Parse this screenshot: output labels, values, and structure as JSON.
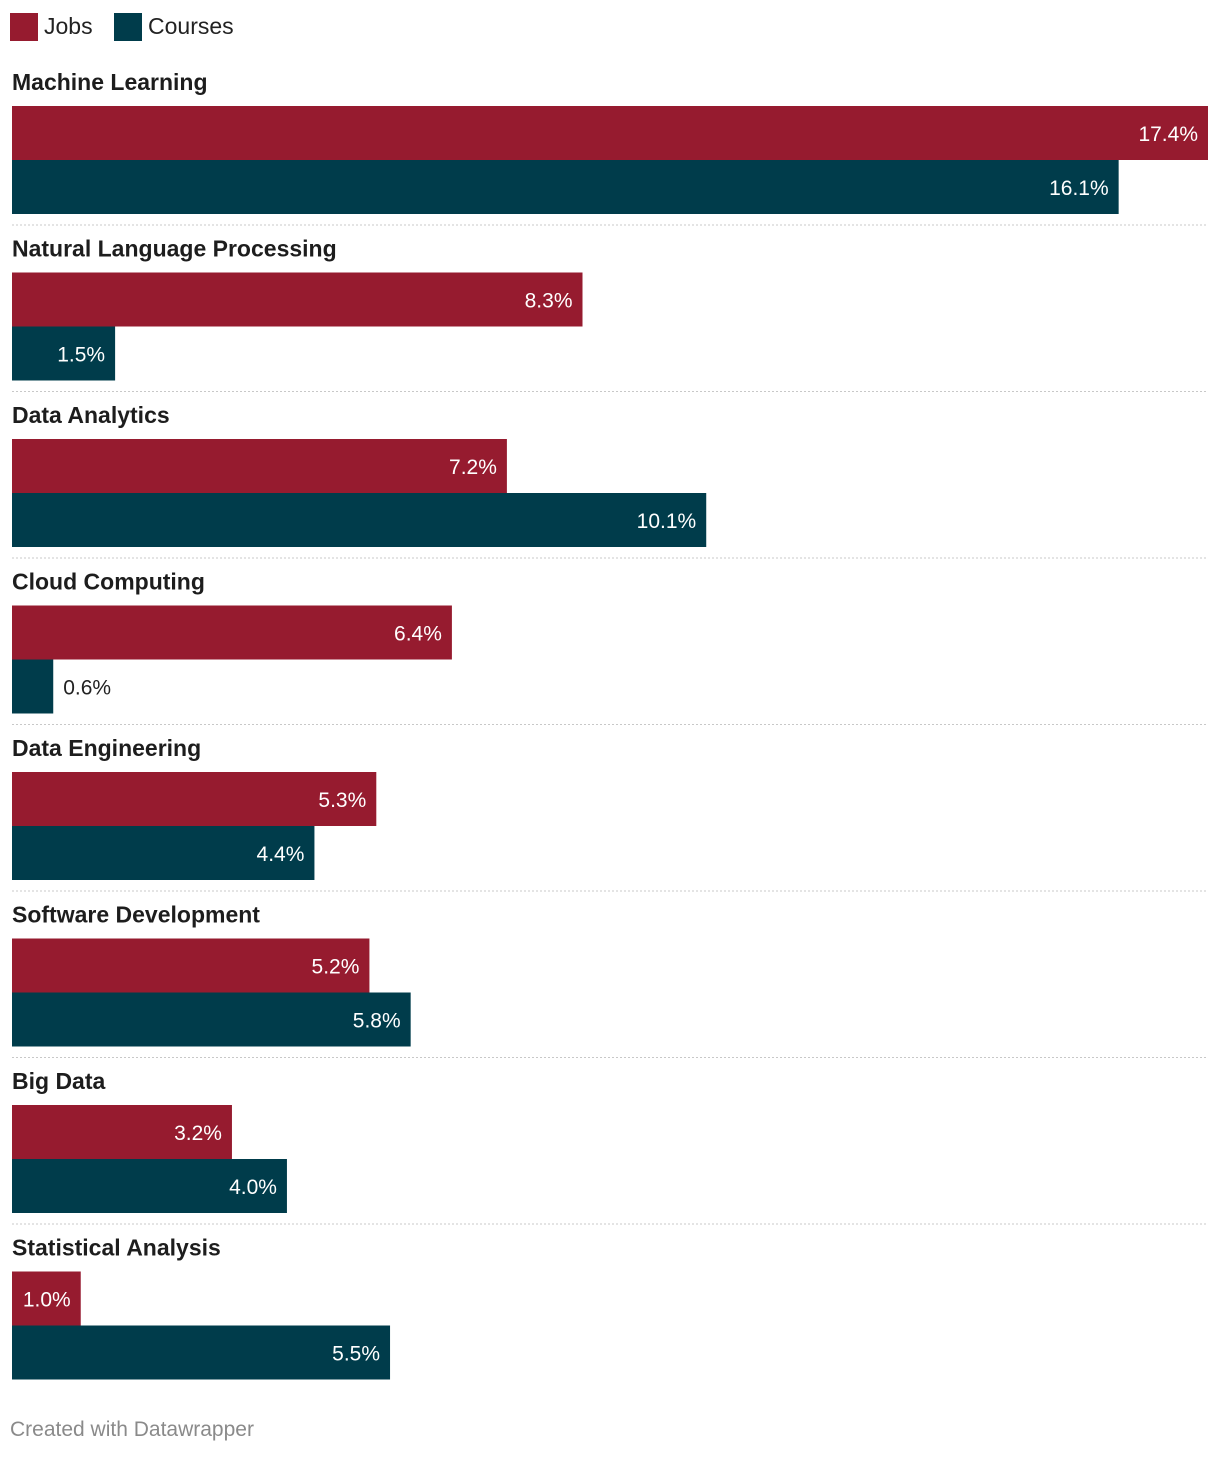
{
  "chart_data": {
    "type": "bar",
    "orientation": "horizontal",
    "title": "",
    "categories": [
      "Machine Learning",
      "Natural Language Processing",
      "Data Analytics",
      "Cloud Computing",
      "Data Engineering",
      "Software Development",
      "Big Data",
      "Statistical Analysis"
    ],
    "series": [
      {
        "name": "Jobs",
        "color": "#961b2f",
        "values": [
          17.4,
          8.3,
          7.2,
          6.4,
          5.3,
          5.2,
          3.2,
          1.0
        ],
        "labels": [
          "17.4%",
          "8.3%",
          "7.2%",
          "6.4%",
          "5.3%",
          "5.2%",
          "3.2%",
          "1.0%"
        ]
      },
      {
        "name": "Courses",
        "color": "#003c4b",
        "values": [
          16.1,
          1.5,
          10.1,
          0.6,
          4.4,
          5.8,
          4.0,
          5.5
        ],
        "labels": [
          "16.1%",
          "1.5%",
          "10.1%",
          "0.6%",
          "4.4%",
          "5.8%",
          "4.0%",
          "5.5%"
        ]
      }
    ],
    "xlim": [
      0,
      17.4
    ],
    "grid": false,
    "legend": "top-left"
  },
  "footer": "Created with Datawrapper"
}
